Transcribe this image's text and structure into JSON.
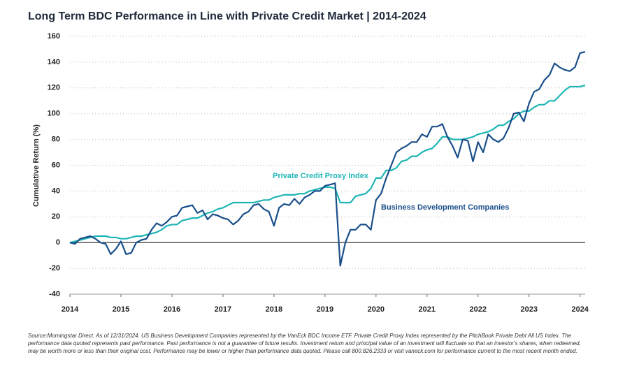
{
  "chart_data": {
    "type": "line",
    "title": "Long Term BDC Performance in Line with Private Credit Market | 2014-2024",
    "y_label": "Cumulative Return (%)",
    "x": [
      2014,
      2014.1,
      2014.2,
      2014.3,
      2014.4,
      2014.5,
      2014.6,
      2014.7,
      2014.8,
      2014.9,
      2015,
      2015.1,
      2015.2,
      2015.3,
      2015.4,
      2015.5,
      2015.6,
      2015.7,
      2015.8,
      2015.9,
      2016,
      2016.1,
      2016.2,
      2016.3,
      2016.4,
      2016.5,
      2016.6,
      2016.7,
      2016.8,
      2016.9,
      2017,
      2017.1,
      2017.2,
      2017.3,
      2017.4,
      2017.5,
      2017.6,
      2017.7,
      2017.8,
      2017.9,
      2018,
      2018.1,
      2018.2,
      2018.3,
      2018.4,
      2018.5,
      2018.6,
      2018.7,
      2018.8,
      2018.9,
      2019,
      2019.1,
      2019.2,
      2019.3,
      2019.4,
      2019.5,
      2019.6,
      2019.7,
      2019.8,
      2019.9,
      2020,
      2020.1,
      2020.2,
      2020.3,
      2020.4,
      2020.5,
      2020.6,
      2020.7,
      2020.8,
      2020.9,
      2021,
      2021.1,
      2021.2,
      2021.3,
      2021.4,
      2021.5,
      2021.6,
      2021.7,
      2021.8,
      2021.9,
      2022,
      2022.1,
      2022.2,
      2022.3,
      2022.4,
      2022.5,
      2022.6,
      2022.7,
      2022.8,
      2022.9,
      2023,
      2023.1,
      2023.2,
      2023.3,
      2023.4,
      2023.5,
      2023.6,
      2023.7,
      2023.8,
      2023.9,
      2024,
      2024.1
    ],
    "series": [
      {
        "name": "Business Development Companies",
        "color": "#1a4f8a",
        "values": [
          0,
          -1,
          3,
          4,
          5,
          3,
          0,
          -1,
          -9,
          -5,
          1,
          -9,
          -8,
          0,
          2,
          3,
          10,
          15,
          13,
          16,
          20,
          21,
          27,
          28,
          29,
          23,
          25,
          18,
          22,
          21,
          19,
          18,
          14,
          17,
          22,
          24,
          29,
          30,
          26,
          24,
          13,
          27,
          30,
          29,
          34,
          30,
          35,
          37,
          40,
          40,
          44,
          45,
          46,
          -18,
          0,
          10,
          10,
          14,
          14,
          10,
          33,
          38,
          50,
          60,
          70,
          73,
          75,
          78,
          78,
          84,
          82,
          90,
          90,
          92,
          82,
          75,
          66,
          80,
          79,
          63,
          78,
          70,
          84,
          80,
          78,
          81,
          89,
          100,
          101,
          94,
          108,
          117,
          119,
          126,
          130,
          139,
          136,
          134,
          133,
          136,
          147,
          148
        ]
      },
      {
        "name": "Private Credit Proxy Index",
        "color": "#1fb5b5",
        "values": [
          0,
          1,
          2,
          3,
          4,
          5,
          5,
          5,
          4,
          4,
          3,
          3,
          4,
          5,
          5,
          6,
          7,
          8,
          10,
          13,
          14,
          14,
          17,
          18,
          19,
          19,
          21,
          23,
          24,
          26,
          27,
          29,
          31,
          31,
          31,
          31,
          31,
          32,
          33,
          33,
          35,
          36,
          37,
          37,
          37,
          38,
          38,
          40,
          41,
          42,
          43,
          43,
          42,
          31,
          31,
          31,
          36,
          37,
          38,
          42,
          50,
          50,
          56,
          56,
          58,
          63,
          64,
          67,
          67,
          70,
          72,
          73,
          77,
          82,
          82,
          80,
          80,
          80,
          81,
          82,
          84,
          85,
          86,
          88,
          91,
          91,
          94,
          96,
          100,
          102,
          102,
          105,
          107,
          107,
          110,
          110,
          114,
          118,
          121,
          121,
          121,
          122
        ]
      }
    ],
    "xlim": [
      2014,
      2024.1
    ],
    "xticks": [
      2014,
      2015,
      2016,
      2017,
      2018,
      2019,
      2020,
      2021,
      2022,
      2023,
      2024
    ],
    "ylim": [
      -40,
      160
    ],
    "yticks": [
      -40,
      -20,
      0,
      20,
      40,
      60,
      80,
      100,
      120,
      140,
      160
    ],
    "grid": true,
    "footnote": "Source:Morningstar Direct. As of 12/31/2024. US Business Development Companies represented by the VanEck BDC Income ETF. Private Credit Proxy Index represented by the PitchBook Private Debt All US Index. The performance data quoted represents past performance. Past performance is not a guarantee of future results. Investment return and principal value of an investment will fluctuate so that an investor's shares, when redeemed, may be worth more or less than their original cost. Performance may be lower or higher than performance data quoted. Please call 800.826.2333 or visit vaneck.com for performance current to the most recent month ended."
  }
}
